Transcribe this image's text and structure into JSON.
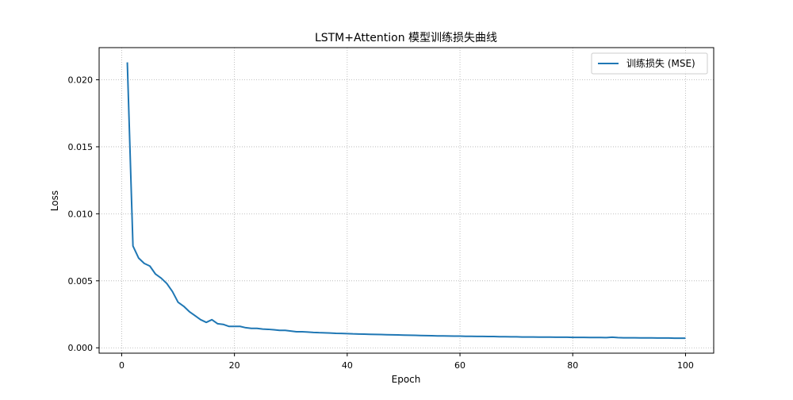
{
  "chart_data": {
    "type": "line",
    "title": "LSTM+Attention 模型训练损失曲线",
    "xlabel": "Epoch",
    "ylabel": "Loss",
    "xlim": [
      -4,
      105
    ],
    "ylim": [
      -0.0004,
      0.0224
    ],
    "xticks": [
      0,
      20,
      40,
      60,
      80,
      100
    ],
    "xtick_labels": [
      "0",
      "20",
      "40",
      "60",
      "80",
      "100"
    ],
    "yticks": [
      0.0,
      0.005,
      0.01,
      0.015,
      0.02
    ],
    "ytick_labels": [
      "0.000",
      "0.005",
      "0.010",
      "0.015",
      "0.020"
    ],
    "grid": true,
    "grid_style": "dotted",
    "legend_position": "top-right",
    "line_color": "#1f77b4",
    "series": [
      {
        "name": "训练损失 (MSE)",
        "x": [
          1,
          2,
          3,
          4,
          5,
          6,
          7,
          8,
          9,
          10,
          11,
          12,
          13,
          14,
          15,
          16,
          17,
          18,
          19,
          20,
          21,
          22,
          23,
          24,
          25,
          26,
          27,
          28,
          29,
          30,
          31,
          32,
          33,
          34,
          35,
          36,
          37,
          38,
          39,
          40,
          41,
          42,
          43,
          44,
          45,
          46,
          47,
          48,
          49,
          50,
          51,
          52,
          53,
          54,
          55,
          56,
          57,
          58,
          59,
          60,
          61,
          62,
          63,
          64,
          65,
          66,
          67,
          68,
          69,
          70,
          71,
          72,
          73,
          74,
          75,
          76,
          77,
          78,
          79,
          80,
          81,
          82,
          83,
          84,
          85,
          86,
          87,
          88,
          89,
          90,
          91,
          92,
          93,
          94,
          95,
          96,
          97,
          98,
          99,
          100
        ],
        "values": [
          0.0213,
          0.0076,
          0.0067,
          0.0063,
          0.0061,
          0.0055,
          0.0052,
          0.0048,
          0.0042,
          0.0034,
          0.0031,
          0.0027,
          0.0024,
          0.0021,
          0.0019,
          0.0021,
          0.0018,
          0.00175,
          0.0016,
          0.0016,
          0.0016,
          0.0015,
          0.00145,
          0.00145,
          0.0014,
          0.00138,
          0.00135,
          0.0013,
          0.0013,
          0.00125,
          0.0012,
          0.0012,
          0.00118,
          0.00115,
          0.00113,
          0.00112,
          0.0011,
          0.00108,
          0.00107,
          0.00106,
          0.00104,
          0.00103,
          0.00102,
          0.00101,
          0.001,
          0.00099,
          0.00098,
          0.00097,
          0.00096,
          0.00095,
          0.00094,
          0.00093,
          0.00092,
          0.00091,
          0.0009,
          0.00089,
          0.00089,
          0.00088,
          0.00087,
          0.00087,
          0.00086,
          0.00086,
          0.00085,
          0.00085,
          0.00084,
          0.00084,
          0.00083,
          0.00083,
          0.00082,
          0.00082,
          0.00081,
          0.00081,
          0.00081,
          0.0008,
          0.0008,
          0.0008,
          0.00079,
          0.00079,
          0.00079,
          0.00078,
          0.00078,
          0.00078,
          0.00077,
          0.00077,
          0.00077,
          0.00076,
          0.00079,
          0.00076,
          0.00075,
          0.00075,
          0.00075,
          0.00074,
          0.00074,
          0.00074,
          0.00073,
          0.00073,
          0.00073,
          0.00072,
          0.00072,
          0.00072
        ]
      }
    ]
  }
}
